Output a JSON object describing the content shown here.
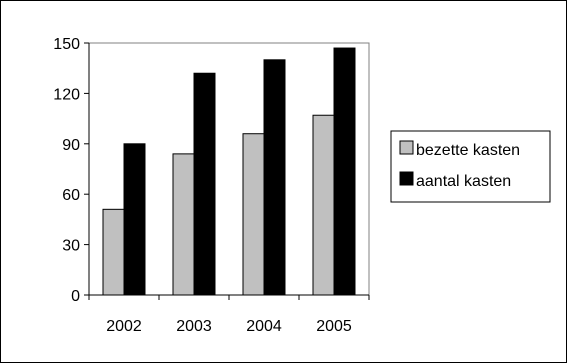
{
  "chart_data": {
    "type": "bar",
    "categories": [
      "2002",
      "2003",
      "2004",
      "2005"
    ],
    "series": [
      {
        "name": "bezette kasten",
        "values": [
          51,
          84,
          96,
          107
        ],
        "color": "#c0c0c0"
      },
      {
        "name": "aantal kasten",
        "values": [
          90,
          132,
          140,
          147
        ],
        "color": "#000000"
      }
    ],
    "ylim": [
      0,
      150
    ],
    "yticks": [
      0,
      30,
      60,
      90,
      120,
      150
    ],
    "grid": false,
    "legend_position": "right"
  }
}
